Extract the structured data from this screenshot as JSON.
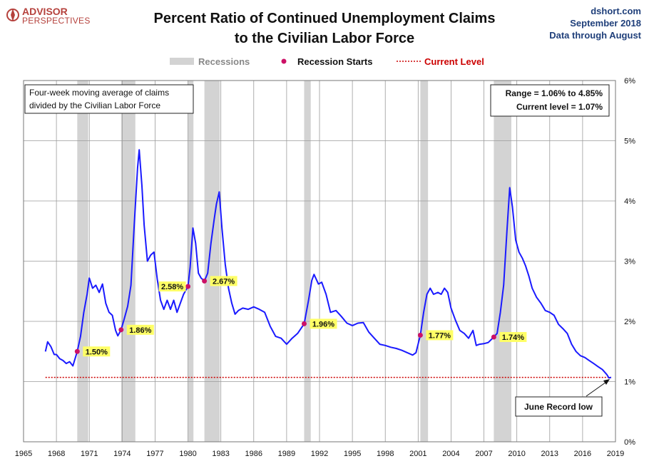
{
  "header": {
    "logo_line1": "ADVISOR",
    "logo_line2": "PERSPECTIVES",
    "title_line1": "Percent Ratio of Continued Unemployment Claims",
    "title_line2": "to the Civilian Labor Force",
    "source_site": "dshort.com",
    "source_date": "September 2018",
    "source_note": "Data through August"
  },
  "legend": {
    "recessions": "Recessions",
    "recession_starts": "Recession Starts",
    "current_level": "Current Level"
  },
  "notes": {
    "box_line1": "Four-week moving average of claims",
    "box_line2": "divided by the Civilian Labor Force",
    "range_line1": "Range = 1.06% to 4.85%",
    "range_line2": "Current level = 1.07%",
    "callout": "June Record low"
  },
  "colors": {
    "series": "#1a1aff",
    "recession_band": "#d3d3d3",
    "recession_dot": "#cc1166",
    "current_level": "#cc0000",
    "label_bg": "#ffff66",
    "logo": "#b5413c",
    "source_text": "#1f3f7a"
  },
  "chart_data": {
    "type": "line",
    "xlim": [
      1965,
      2019
    ],
    "ylim": [
      0,
      6
    ],
    "x_ticks": [
      "1965",
      "1968",
      "1971",
      "1974",
      "1977",
      "1980",
      "1983",
      "1986",
      "1989",
      "1992",
      "1995",
      "1998",
      "2001",
      "2004",
      "2007",
      "2010",
      "2013",
      "2016",
      "2019"
    ],
    "y_ticks": [
      "0%",
      "1%",
      "2%",
      "3%",
      "4%",
      "5%",
      "6%"
    ],
    "grid": true,
    "legend_position": "top",
    "current_level": 1.07,
    "recessions": [
      [
        1969.9,
        1970.9
      ],
      [
        1973.9,
        1975.2
      ],
      [
        1980.0,
        1980.5
      ],
      [
        1981.5,
        1982.9
      ],
      [
        1990.6,
        1991.2
      ],
      [
        2001.2,
        2001.9
      ],
      [
        2007.9,
        2009.5
      ]
    ],
    "recession_starts": [
      {
        "x": 1969.9,
        "y": 1.5,
        "label": "1.50%"
      },
      {
        "x": 1973.9,
        "y": 1.86,
        "label": "1.86%"
      },
      {
        "x": 1980.0,
        "y": 2.58,
        "label": "2.58%"
      },
      {
        "x": 1981.5,
        "y": 2.67,
        "label": "2.67%"
      },
      {
        "x": 1990.6,
        "y": 1.96,
        "label": "1.96%"
      },
      {
        "x": 2001.2,
        "y": 1.77,
        "label": "1.77%"
      },
      {
        "x": 2007.9,
        "y": 1.74,
        "label": "1.74%"
      }
    ],
    "series": [
      {
        "points": [
          [
            1967.0,
            1.5
          ],
          [
            1967.2,
            1.66
          ],
          [
            1967.5,
            1.58
          ],
          [
            1967.8,
            1.45
          ],
          [
            1968.0,
            1.45
          ],
          [
            1968.3,
            1.38
          ],
          [
            1968.6,
            1.35
          ],
          [
            1968.9,
            1.3
          ],
          [
            1969.2,
            1.33
          ],
          [
            1969.5,
            1.26
          ],
          [
            1969.9,
            1.5
          ],
          [
            1970.2,
            1.75
          ],
          [
            1970.5,
            2.15
          ],
          [
            1970.8,
            2.45
          ],
          [
            1971.0,
            2.72
          ],
          [
            1971.3,
            2.55
          ],
          [
            1971.6,
            2.6
          ],
          [
            1971.9,
            2.48
          ],
          [
            1972.2,
            2.62
          ],
          [
            1972.5,
            2.3
          ],
          [
            1972.8,
            2.15
          ],
          [
            1973.1,
            2.1
          ],
          [
            1973.4,
            1.85
          ],
          [
            1973.6,
            1.76
          ],
          [
            1973.9,
            1.86
          ],
          [
            1974.2,
            2.05
          ],
          [
            1974.5,
            2.25
          ],
          [
            1974.8,
            2.6
          ],
          [
            1975.1,
            3.6
          ],
          [
            1975.4,
            4.55
          ],
          [
            1975.55,
            4.85
          ],
          [
            1975.8,
            4.25
          ],
          [
            1976.0,
            3.6
          ],
          [
            1976.3,
            3.0
          ],
          [
            1976.6,
            3.1
          ],
          [
            1976.9,
            3.15
          ],
          [
            1977.2,
            2.7
          ],
          [
            1977.5,
            2.35
          ],
          [
            1977.8,
            2.2
          ],
          [
            1978.1,
            2.35
          ],
          [
            1978.4,
            2.2
          ],
          [
            1978.7,
            2.35
          ],
          [
            1979.0,
            2.15
          ],
          [
            1979.3,
            2.3
          ],
          [
            1979.6,
            2.45
          ],
          [
            1980.0,
            2.58
          ],
          [
            1980.2,
            2.9
          ],
          [
            1980.45,
            3.55
          ],
          [
            1980.7,
            3.3
          ],
          [
            1980.95,
            2.8
          ],
          [
            1981.2,
            2.72
          ],
          [
            1981.5,
            2.67
          ],
          [
            1981.8,
            2.8
          ],
          [
            1982.1,
            3.3
          ],
          [
            1982.4,
            3.7
          ],
          [
            1982.6,
            3.95
          ],
          [
            1982.85,
            4.15
          ],
          [
            1983.1,
            3.55
          ],
          [
            1983.4,
            2.95
          ],
          [
            1983.7,
            2.55
          ],
          [
            1984.0,
            2.3
          ],
          [
            1984.3,
            2.12
          ],
          [
            1984.6,
            2.18
          ],
          [
            1985.0,
            2.22
          ],
          [
            1985.5,
            2.2
          ],
          [
            1986.0,
            2.24
          ],
          [
            1986.5,
            2.2
          ],
          [
            1987.0,
            2.15
          ],
          [
            1987.5,
            1.92
          ],
          [
            1988.0,
            1.75
          ],
          [
            1988.5,
            1.72
          ],
          [
            1989.0,
            1.62
          ],
          [
            1989.5,
            1.72
          ],
          [
            1990.0,
            1.8
          ],
          [
            1990.6,
            1.96
          ],
          [
            1991.0,
            2.35
          ],
          [
            1991.3,
            2.68
          ],
          [
            1991.5,
            2.78
          ],
          [
            1991.9,
            2.62
          ],
          [
            1992.2,
            2.65
          ],
          [
            1992.6,
            2.45
          ],
          [
            1993.0,
            2.15
          ],
          [
            1993.5,
            2.18
          ],
          [
            1994.0,
            2.08
          ],
          [
            1994.5,
            1.97
          ],
          [
            1995.0,
            1.93
          ],
          [
            1995.5,
            1.97
          ],
          [
            1996.0,
            1.98
          ],
          [
            1996.5,
            1.82
          ],
          [
            1997.0,
            1.72
          ],
          [
            1997.5,
            1.62
          ],
          [
            1998.0,
            1.6
          ],
          [
            1998.5,
            1.57
          ],
          [
            1999.0,
            1.55
          ],
          [
            1999.5,
            1.52
          ],
          [
            2000.0,
            1.48
          ],
          [
            2000.5,
            1.44
          ],
          [
            2000.8,
            1.48
          ],
          [
            2001.2,
            1.77
          ],
          [
            2001.5,
            2.15
          ],
          [
            2001.8,
            2.45
          ],
          [
            2002.1,
            2.55
          ],
          [
            2002.4,
            2.45
          ],
          [
            2002.8,
            2.48
          ],
          [
            2003.1,
            2.45
          ],
          [
            2003.4,
            2.55
          ],
          [
            2003.7,
            2.48
          ],
          [
            2004.0,
            2.22
          ],
          [
            2004.4,
            2.02
          ],
          [
            2004.8,
            1.85
          ],
          [
            2005.2,
            1.8
          ],
          [
            2005.6,
            1.72
          ],
          [
            2006.0,
            1.85
          ],
          [
            2006.3,
            1.6
          ],
          [
            2006.6,
            1.62
          ],
          [
            2007.0,
            1.63
          ],
          [
            2007.4,
            1.65
          ],
          [
            2007.9,
            1.74
          ],
          [
            2008.2,
            1.8
          ],
          [
            2008.5,
            2.15
          ],
          [
            2008.8,
            2.6
          ],
          [
            2009.1,
            3.5
          ],
          [
            2009.35,
            4.22
          ],
          [
            2009.6,
            3.9
          ],
          [
            2009.9,
            3.35
          ],
          [
            2010.2,
            3.15
          ],
          [
            2010.5,
            3.05
          ],
          [
            2010.8,
            2.92
          ],
          [
            2011.1,
            2.75
          ],
          [
            2011.4,
            2.55
          ],
          [
            2011.8,
            2.4
          ],
          [
            2012.2,
            2.3
          ],
          [
            2012.6,
            2.18
          ],
          [
            2013.0,
            2.15
          ],
          [
            2013.4,
            2.1
          ],
          [
            2013.8,
            1.95
          ],
          [
            2014.2,
            1.88
          ],
          [
            2014.6,
            1.8
          ],
          [
            2015.0,
            1.62
          ],
          [
            2015.4,
            1.5
          ],
          [
            2015.8,
            1.43
          ],
          [
            2016.2,
            1.4
          ],
          [
            2016.6,
            1.35
          ],
          [
            2017.0,
            1.3
          ],
          [
            2017.4,
            1.25
          ],
          [
            2017.8,
            1.2
          ],
          [
            2018.2,
            1.12
          ],
          [
            2018.4,
            1.06
          ],
          [
            2018.6,
            1.07
          ]
        ]
      }
    ]
  }
}
